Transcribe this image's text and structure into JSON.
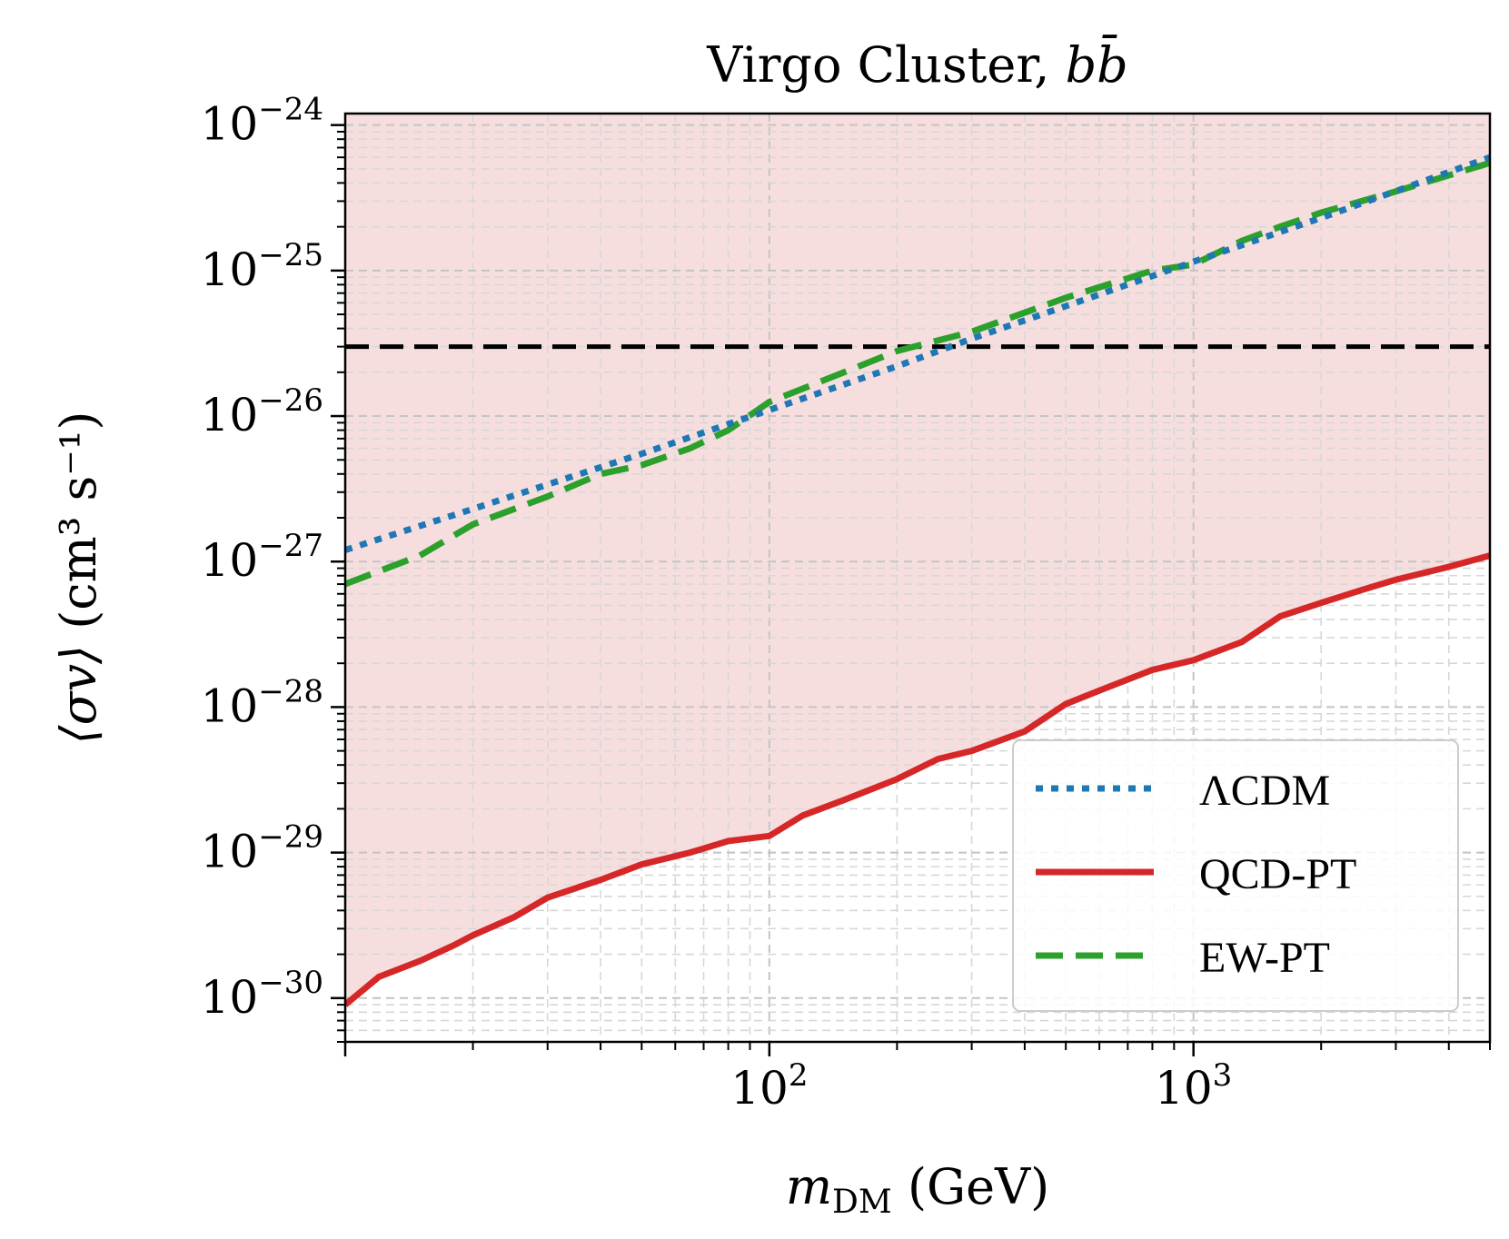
{
  "chart_data": {
    "type": "line",
    "title": "Virgo Cluster, ",
    "title_math": "bb̄",
    "xlabel": {
      "symbol": "m",
      "subscript": "DM",
      "unit": " (GeV)"
    },
    "ylabel": {
      "symbol": "⟨σv⟩",
      "unit": " (cm³ s⁻¹)"
    },
    "xscale": "log",
    "yscale": "log",
    "xlim": [
      10,
      5000
    ],
    "ylim": [
      5e-31,
      1.2e-24
    ],
    "x_ticks": [
      {
        "value": 100,
        "base": "10",
        "exp": "2"
      },
      {
        "value": 1000,
        "base": "10",
        "exp": "3"
      }
    ],
    "y_ticks": [
      {
        "value": 1e-24,
        "base": "10",
        "exp": "−24"
      },
      {
        "value": 1e-25,
        "base": "10",
        "exp": "−25"
      },
      {
        "value": 1e-26,
        "base": "10",
        "exp": "−26"
      },
      {
        "value": 1e-27,
        "base": "10",
        "exp": "−27"
      },
      {
        "value": 1e-28,
        "base": "10",
        "exp": "−28"
      },
      {
        "value": 1e-29,
        "base": "10",
        "exp": "−29"
      },
      {
        "value": 1e-30,
        "base": "10",
        "exp": "−30"
      }
    ],
    "grid": true,
    "thermal_relic_line": {
      "value": 3e-26,
      "color": "#000000",
      "style": "dashed"
    },
    "excluded_region": {
      "color": "#f7dede",
      "bounded_below_by": "QCD-PT"
    },
    "legend_position": "lower-right",
    "series": [
      {
        "name": "ΛCDM",
        "color": "#1f77b4",
        "style": "dotted",
        "x": [
          10,
          20,
          50,
          100,
          200,
          300,
          500,
          1000,
          2000,
          5000
        ],
        "y": [
          1.2e-27,
          2.3e-27,
          5.5e-27,
          1.1e-26,
          2.2e-26,
          3.4e-26,
          5.7e-26,
          1.15e-25,
          2.3e-25,
          6e-25
        ]
      },
      {
        "name": "QCD-PT",
        "color": "#d62728",
        "style": "solid",
        "x": [
          10,
          12,
          15,
          18,
          20,
          25,
          30,
          40,
          50,
          65,
          80,
          100,
          120,
          150,
          200,
          250,
          300,
          400,
          500,
          600,
          800,
          1000,
          1300,
          1600,
          2000,
          2500,
          3000,
          4000,
          5000
        ],
        "y": [
          9e-31,
          1.4e-30,
          1.8e-30,
          2.3e-30,
          2.7e-30,
          3.6e-30,
          4.9e-30,
          6.5e-30,
          8.3e-30,
          1e-29,
          1.2e-29,
          1.3e-29,
          1.8e-29,
          2.3e-29,
          3.2e-29,
          4.4e-29,
          5e-29,
          6.8e-29,
          1.05e-28,
          1.3e-28,
          1.8e-28,
          2.1e-28,
          2.8e-28,
          4.2e-28,
          5.2e-28,
          6.4e-28,
          7.5e-28,
          9.2e-28,
          1.1e-27
        ]
      },
      {
        "name": "EW-PT",
        "color": "#2ca02c",
        "style": "dashed",
        "x": [
          10,
          15,
          20,
          30,
          40,
          50,
          65,
          80,
          100,
          150,
          200,
          300,
          500,
          800,
          1000,
          1300,
          1600,
          2000,
          3000,
          5000
        ],
        "y": [
          7e-28,
          1.1e-27,
          1.8e-27,
          2.8e-27,
          4e-27,
          4.6e-27,
          6e-27,
          8e-27,
          1.25e-26,
          2e-26,
          2.8e-26,
          3.8e-26,
          6.5e-26,
          1e-25,
          1.1e-25,
          1.6e-25,
          2e-25,
          2.5e-25,
          3.5e-25,
          5.5e-25
        ]
      }
    ]
  }
}
